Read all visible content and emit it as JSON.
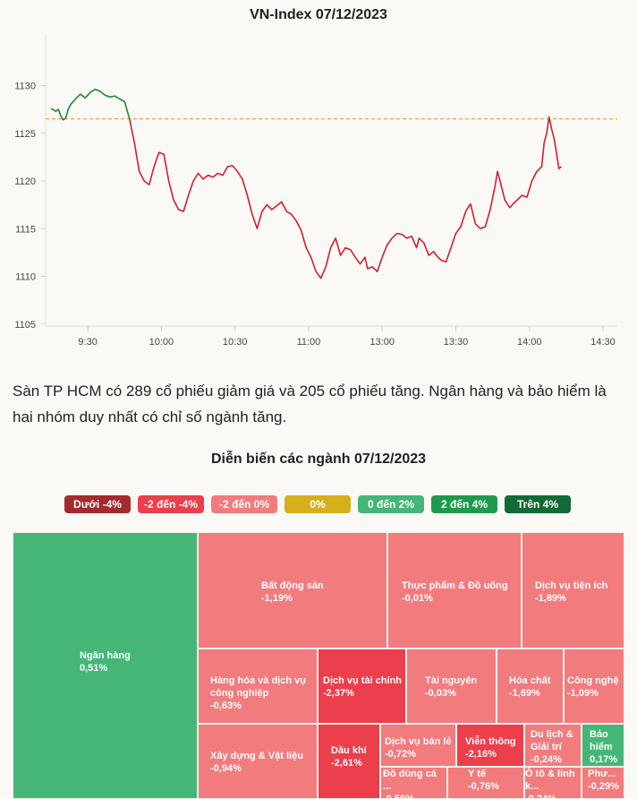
{
  "chart_data": {
    "type": "line",
    "title": "VN-Index 07/12/2023",
    "reference_value": 1126.5,
    "ylim": [
      1105,
      1133
    ],
    "y_ticks": [
      "1130",
      "1125",
      "1120",
      "1115",
      "1110",
      "1105"
    ],
    "x_ticks": [
      "9:30",
      "10:00",
      "10:30",
      "11:00",
      "13:00",
      "13:30",
      "14:00",
      "14:30"
    ],
    "x_tick_minutes": [
      15,
      45,
      75,
      105,
      135,
      165,
      195,
      225
    ],
    "x_range_minutes": [
      0,
      229
    ],
    "series": [
      {
        "name": "VN-Index",
        "points": [
          [
            0,
            1127.6
          ],
          [
            2,
            1127.3
          ],
          [
            3,
            1127.5
          ],
          [
            4,
            1126.8
          ],
          [
            5,
            1126.4
          ],
          [
            6,
            1126.6
          ],
          [
            7,
            1127.5
          ],
          [
            8,
            1128.0
          ],
          [
            10,
            1128.6
          ],
          [
            12,
            1129.1
          ],
          [
            14,
            1128.7
          ],
          [
            16,
            1129.3
          ],
          [
            18,
            1129.6
          ],
          [
            20,
            1129.4
          ],
          [
            22,
            1129.0
          ],
          [
            24,
            1128.8
          ],
          [
            26,
            1128.9
          ],
          [
            28,
            1128.6
          ],
          [
            30,
            1128.3
          ],
          [
            32,
            1126.5
          ],
          [
            34,
            1124.0
          ],
          [
            36,
            1121.0
          ],
          [
            38,
            1120.0
          ],
          [
            40,
            1119.6
          ],
          [
            42,
            1121.5
          ],
          [
            44,
            1123.0
          ],
          [
            46,
            1122.8
          ],
          [
            48,
            1120.0
          ],
          [
            50,
            1118.0
          ],
          [
            52,
            1117.0
          ],
          [
            54,
            1116.8
          ],
          [
            56,
            1118.5
          ],
          [
            58,
            1120.0
          ],
          [
            60,
            1120.8
          ],
          [
            62,
            1120.2
          ],
          [
            64,
            1120.6
          ],
          [
            66,
            1120.4
          ],
          [
            68,
            1120.8
          ],
          [
            70,
            1120.6
          ],
          [
            72,
            1121.5
          ],
          [
            74,
            1121.6
          ],
          [
            76,
            1121.0
          ],
          [
            78,
            1120.2
          ],
          [
            80,
            1118.5
          ],
          [
            82,
            1116.5
          ],
          [
            84,
            1115.0
          ],
          [
            86,
            1116.8
          ],
          [
            88,
            1117.5
          ],
          [
            90,
            1117.0
          ],
          [
            92,
            1117.4
          ],
          [
            94,
            1117.8
          ],
          [
            96,
            1116.8
          ],
          [
            98,
            1116.5
          ],
          [
            100,
            1115.8
          ],
          [
            102,
            1114.8
          ],
          [
            104,
            1113.0
          ],
          [
            106,
            1112.0
          ],
          [
            108,
            1110.5
          ],
          [
            110,
            1109.8
          ],
          [
            112,
            1111.0
          ],
          [
            114,
            1113.0
          ],
          [
            116,
            1114.0
          ],
          [
            118,
            1112.2
          ],
          [
            120,
            1113.0
          ],
          [
            122,
            1112.8
          ],
          [
            124,
            1112.0
          ],
          [
            126,
            1111.3
          ],
          [
            128,
            1112.0
          ],
          [
            129,
            1110.8
          ],
          [
            131,
            1111.0
          ],
          [
            133,
            1110.5
          ],
          [
            135,
            1112.0
          ],
          [
            137,
            1113.3
          ],
          [
            139,
            1114.0
          ],
          [
            141,
            1114.5
          ],
          [
            143,
            1114.4
          ],
          [
            145,
            1114.0
          ],
          [
            147,
            1114.2
          ],
          [
            149,
            1113.0
          ],
          [
            150,
            1114.0
          ],
          [
            152,
            1113.5
          ],
          [
            154,
            1112.2
          ],
          [
            156,
            1112.6
          ],
          [
            157,
            1112.2
          ],
          [
            159,
            1111.7
          ],
          [
            161,
            1111.5
          ],
          [
            163,
            1113.0
          ],
          [
            165,
            1114.5
          ],
          [
            167,
            1115.2
          ],
          [
            169,
            1116.8
          ],
          [
            171,
            1117.6
          ],
          [
            173,
            1115.5
          ],
          [
            175,
            1115.0
          ],
          [
            177,
            1115.2
          ],
          [
            179,
            1117.0
          ],
          [
            181,
            1119.5
          ],
          [
            182,
            1121.0
          ],
          [
            183,
            1120.0
          ],
          [
            185,
            1118.0
          ],
          [
            187,
            1117.2
          ],
          [
            188,
            1117.5
          ],
          [
            190,
            1118.0
          ],
          [
            192,
            1118.5
          ],
          [
            194,
            1118.3
          ],
          [
            196,
            1120.0
          ],
          [
            198,
            1121.0
          ],
          [
            200,
            1121.5
          ],
          [
            201,
            1124.0
          ],
          [
            202,
            1125.0
          ],
          [
            203,
            1126.7
          ],
          [
            204,
            1125.5
          ],
          [
            205,
            1124.5
          ],
          [
            206,
            1123.0
          ],
          [
            207,
            1121.3
          ],
          [
            208,
            1121.5
          ]
        ]
      }
    ]
  },
  "paragraph": "Sàn TP HCM có 289 cổ phiếu giảm giá và 205 cổ phiếu tăng. Ngân hàng và bảo hiểm là hai nhóm duy nhất có chỉ số ngành tăng.",
  "treemap": {
    "title": "Diễn biến các ngành 07/12/2023",
    "legend": [
      {
        "label": "Dưới -4%",
        "color": "#a32a2f"
      },
      {
        "label": "-2 đến -4%",
        "color": "#ec3e4b"
      },
      {
        "label": "-2 đến 0%",
        "color": "#f27b7e"
      },
      {
        "label": "0%",
        "color": "#d6b01b"
      },
      {
        "label": "0 đến 2%",
        "color": "#45b678"
      },
      {
        "label": "2 đến 4%",
        "color": "#1f9a4d"
      },
      {
        "label": "Trên 4%",
        "color": "#126a35"
      }
    ],
    "tiles": [
      {
        "name": "Ngân hàng",
        "change": "0,51%",
        "color": "#45b678"
      },
      {
        "name": "Bất động sản",
        "change": "-1,19%",
        "color": "#f27b7e"
      },
      {
        "name": "Thực phẩm & Đồ uống",
        "change": "-0,01%",
        "color": "#f27b7e"
      },
      {
        "name": "Dịch vụ tiện ích",
        "change": "-1,89%",
        "color": "#f27b7e"
      },
      {
        "name": "Hàng hóa và dịch vụ công nghiệp",
        "change": "-0,63%",
        "color": "#f27b7e"
      },
      {
        "name": "Dịch vụ tài chính",
        "change": "-2,37%",
        "color": "#ec3e4b"
      },
      {
        "name": "Tài nguyên",
        "change": "-0,03%",
        "color": "#f27b7e"
      },
      {
        "name": "Hóa chất",
        "change": "-1,69%",
        "color": "#f27b7e"
      },
      {
        "name": "Công nghệ",
        "change": "-1,09%",
        "color": "#f27b7e"
      },
      {
        "name": "Xây dựng & Vật liệu",
        "change": "-0,94%",
        "color": "#f27b7e"
      },
      {
        "name": "Dầu khí",
        "change": "-2,61%",
        "color": "#ec3e4b"
      },
      {
        "name": "Dịch vụ bán lẻ",
        "change": "-0,72%",
        "color": "#f27b7e"
      },
      {
        "name": "Viễn thông",
        "change": "-2,16%",
        "color": "#ec3e4b"
      },
      {
        "name": "Du lịch & Giải trí",
        "change": "-0,24%",
        "color": "#f27b7e"
      },
      {
        "name": "Bảo hiểm",
        "change": "0,17%",
        "color": "#45b678"
      },
      {
        "name": "Đồ dùng cá ...",
        "change": "-0,56%",
        "color": "#f27b7e"
      },
      {
        "name": "Y tế",
        "change": "-0,76%",
        "color": "#f27b7e"
      },
      {
        "name": "Ô tô & linh k...",
        "change": "-0,24%",
        "color": "#f27b7e"
      },
      {
        "name": "Phư...",
        "change": "-0,29%",
        "color": "#f27b7e"
      }
    ]
  }
}
